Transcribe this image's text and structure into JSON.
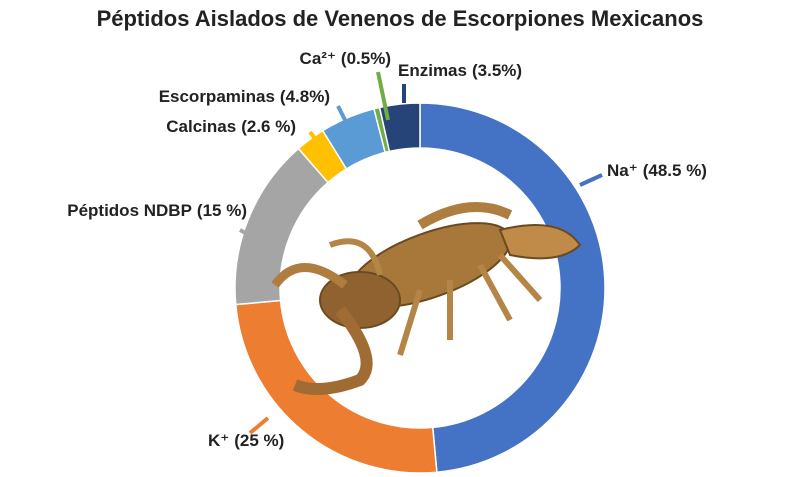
{
  "chart_data": {
    "type": "donut",
    "title": "Péptidos Aislados de Venenos de Escorpiones Mexicanos",
    "categories": [
      "Na⁺",
      "K⁺",
      "Péptidos NDBP",
      "Calcinas",
      "Escorpaminas",
      "Ca²⁺",
      "Enzimas"
    ],
    "values": [
      48.5,
      25,
      15,
      2.6,
      4.8,
      0.5,
      3.5
    ],
    "value_labels": [
      "(48.5 %)",
      "(25 %)",
      "(15 %)",
      "(2.6 %)",
      "(4.8%)",
      "(0.5%)",
      "(3.5%)"
    ],
    "colors": [
      "#4472c4",
      "#ed7d31",
      "#a5a5a5",
      "#ffc000",
      "#5b9bd5",
      "#70ad47",
      "#264478"
    ]
  }
}
